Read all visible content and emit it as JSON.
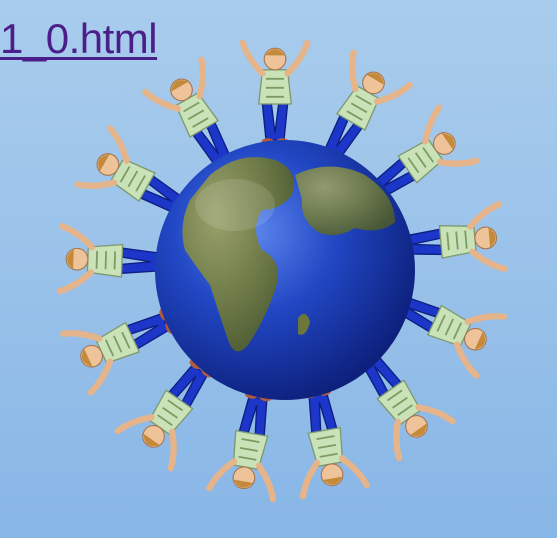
{
  "page": {
    "link_text": "1_0.html",
    "link_color": "#4b1f8a"
  },
  "artwork": {
    "image": "globe-with-people-holding-hands-icon",
    "background_color": "#9dc4ea",
    "globe_ocean_color": "#1d3fb0",
    "shirt_color": "#c9e2b8",
    "pants_color": "#1b36c8"
  }
}
